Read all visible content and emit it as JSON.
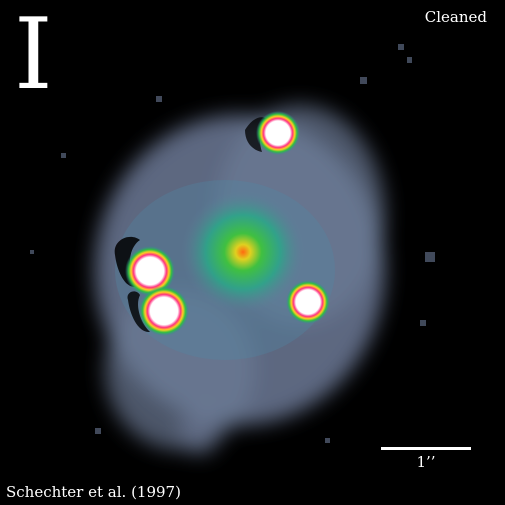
{
  "figure": {
    "band_letter": "I",
    "status": "Cleaned",
    "credit": "Schechter et al. (1997)",
    "scale_label": "1’’"
  },
  "colors": {
    "background": "#000000",
    "halo": "#6c7a96",
    "galaxy_core": "#f0a020",
    "galaxy_glow": "#2fbf5a",
    "point_source_core": "#ffffff",
    "point_source_ring": "#e0206a"
  }
}
